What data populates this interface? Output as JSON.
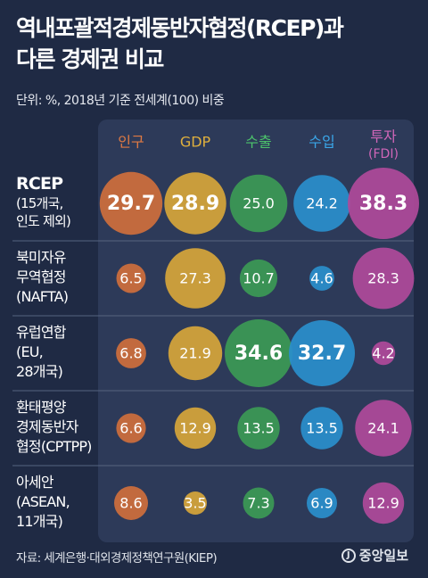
{
  "title_line1": "역내포괄적경제동반자협정(RCEP)과",
  "title_line2": "다른 경제권 비교",
  "unit_note": "단위: %, 2018년 기준 전세계(100) 비중",
  "source": "자료: 세계은행·대외경제정책연구원(KIEP)",
  "logo_text": "중앙일보",
  "colors": {
    "background": "#1f2a44",
    "panel": "#2d3a59",
    "population": "#cf6f3c",
    "gdp": "#d7a63a",
    "export": "#3c9a55",
    "import": "#2a8fcc",
    "investment": "#b04a9a"
  },
  "chart_data": {
    "type": "bubble-table",
    "title": "역내포괄적경제동반자협정(RCEP)과 다른 경제권 비교",
    "unit": "%",
    "columns": [
      {
        "key": "population",
        "label": "인구",
        "sublabel": "",
        "color": "#e07a43"
      },
      {
        "key": "gdp",
        "label": "GDP",
        "sublabel": "",
        "color": "#e0b03d"
      },
      {
        "key": "export",
        "label": "수출",
        "sublabel": "",
        "color": "#4cc46b"
      },
      {
        "key": "import",
        "label": "수입",
        "sublabel": "",
        "color": "#3aa6e8"
      },
      {
        "key": "investment",
        "label": "투자",
        "sublabel": "(FDI)",
        "color": "#d066b8"
      }
    ],
    "rows": [
      {
        "name": "RCEP",
        "sub": [
          "(15개국,",
          "인도 제외)"
        ],
        "values": [
          29.7,
          28.9,
          25.0,
          24.2,
          38.3
        ],
        "highlight": [
          true,
          true,
          false,
          false,
          true
        ]
      },
      {
        "name": "북미자유",
        "sub": [
          "무역협정",
          "(NAFTA)"
        ],
        "values": [
          6.5,
          27.3,
          10.7,
          4.6,
          28.3
        ],
        "highlight": [
          false,
          false,
          false,
          false,
          false
        ]
      },
      {
        "name": "유럽연합",
        "sub": [
          "(EU,",
          "28개국)"
        ],
        "values": [
          6.8,
          21.9,
          34.6,
          32.7,
          4.2
        ],
        "highlight": [
          false,
          false,
          true,
          true,
          false
        ]
      },
      {
        "name": "환태평양",
        "sub": [
          "경제동반자",
          "협정(CPTPP)"
        ],
        "values": [
          6.6,
          12.9,
          13.5,
          13.5,
          24.1
        ],
        "highlight": [
          false,
          false,
          false,
          false,
          false
        ]
      },
      {
        "name": "아세안",
        "sub": [
          "(ASEAN,",
          "11개국)"
        ],
        "values": [
          8.6,
          3.5,
          7.3,
          6.9,
          12.9
        ],
        "highlight": [
          false,
          false,
          false,
          false,
          false
        ]
      }
    ],
    "value_labels": [
      [
        "29.7",
        "28.9",
        "25.0",
        "24.2",
        "38.3"
      ],
      [
        "6.5",
        "27.3",
        "10.7",
        "4.6",
        "28.3"
      ],
      [
        "6.8",
        "21.9",
        "34.6",
        "32.7",
        "4.2"
      ],
      [
        "6.6",
        "12.9",
        "13.5",
        "13.5",
        "24.1"
      ],
      [
        "8.6",
        "3.5",
        "7.3",
        "6.9",
        "12.9"
      ]
    ]
  }
}
